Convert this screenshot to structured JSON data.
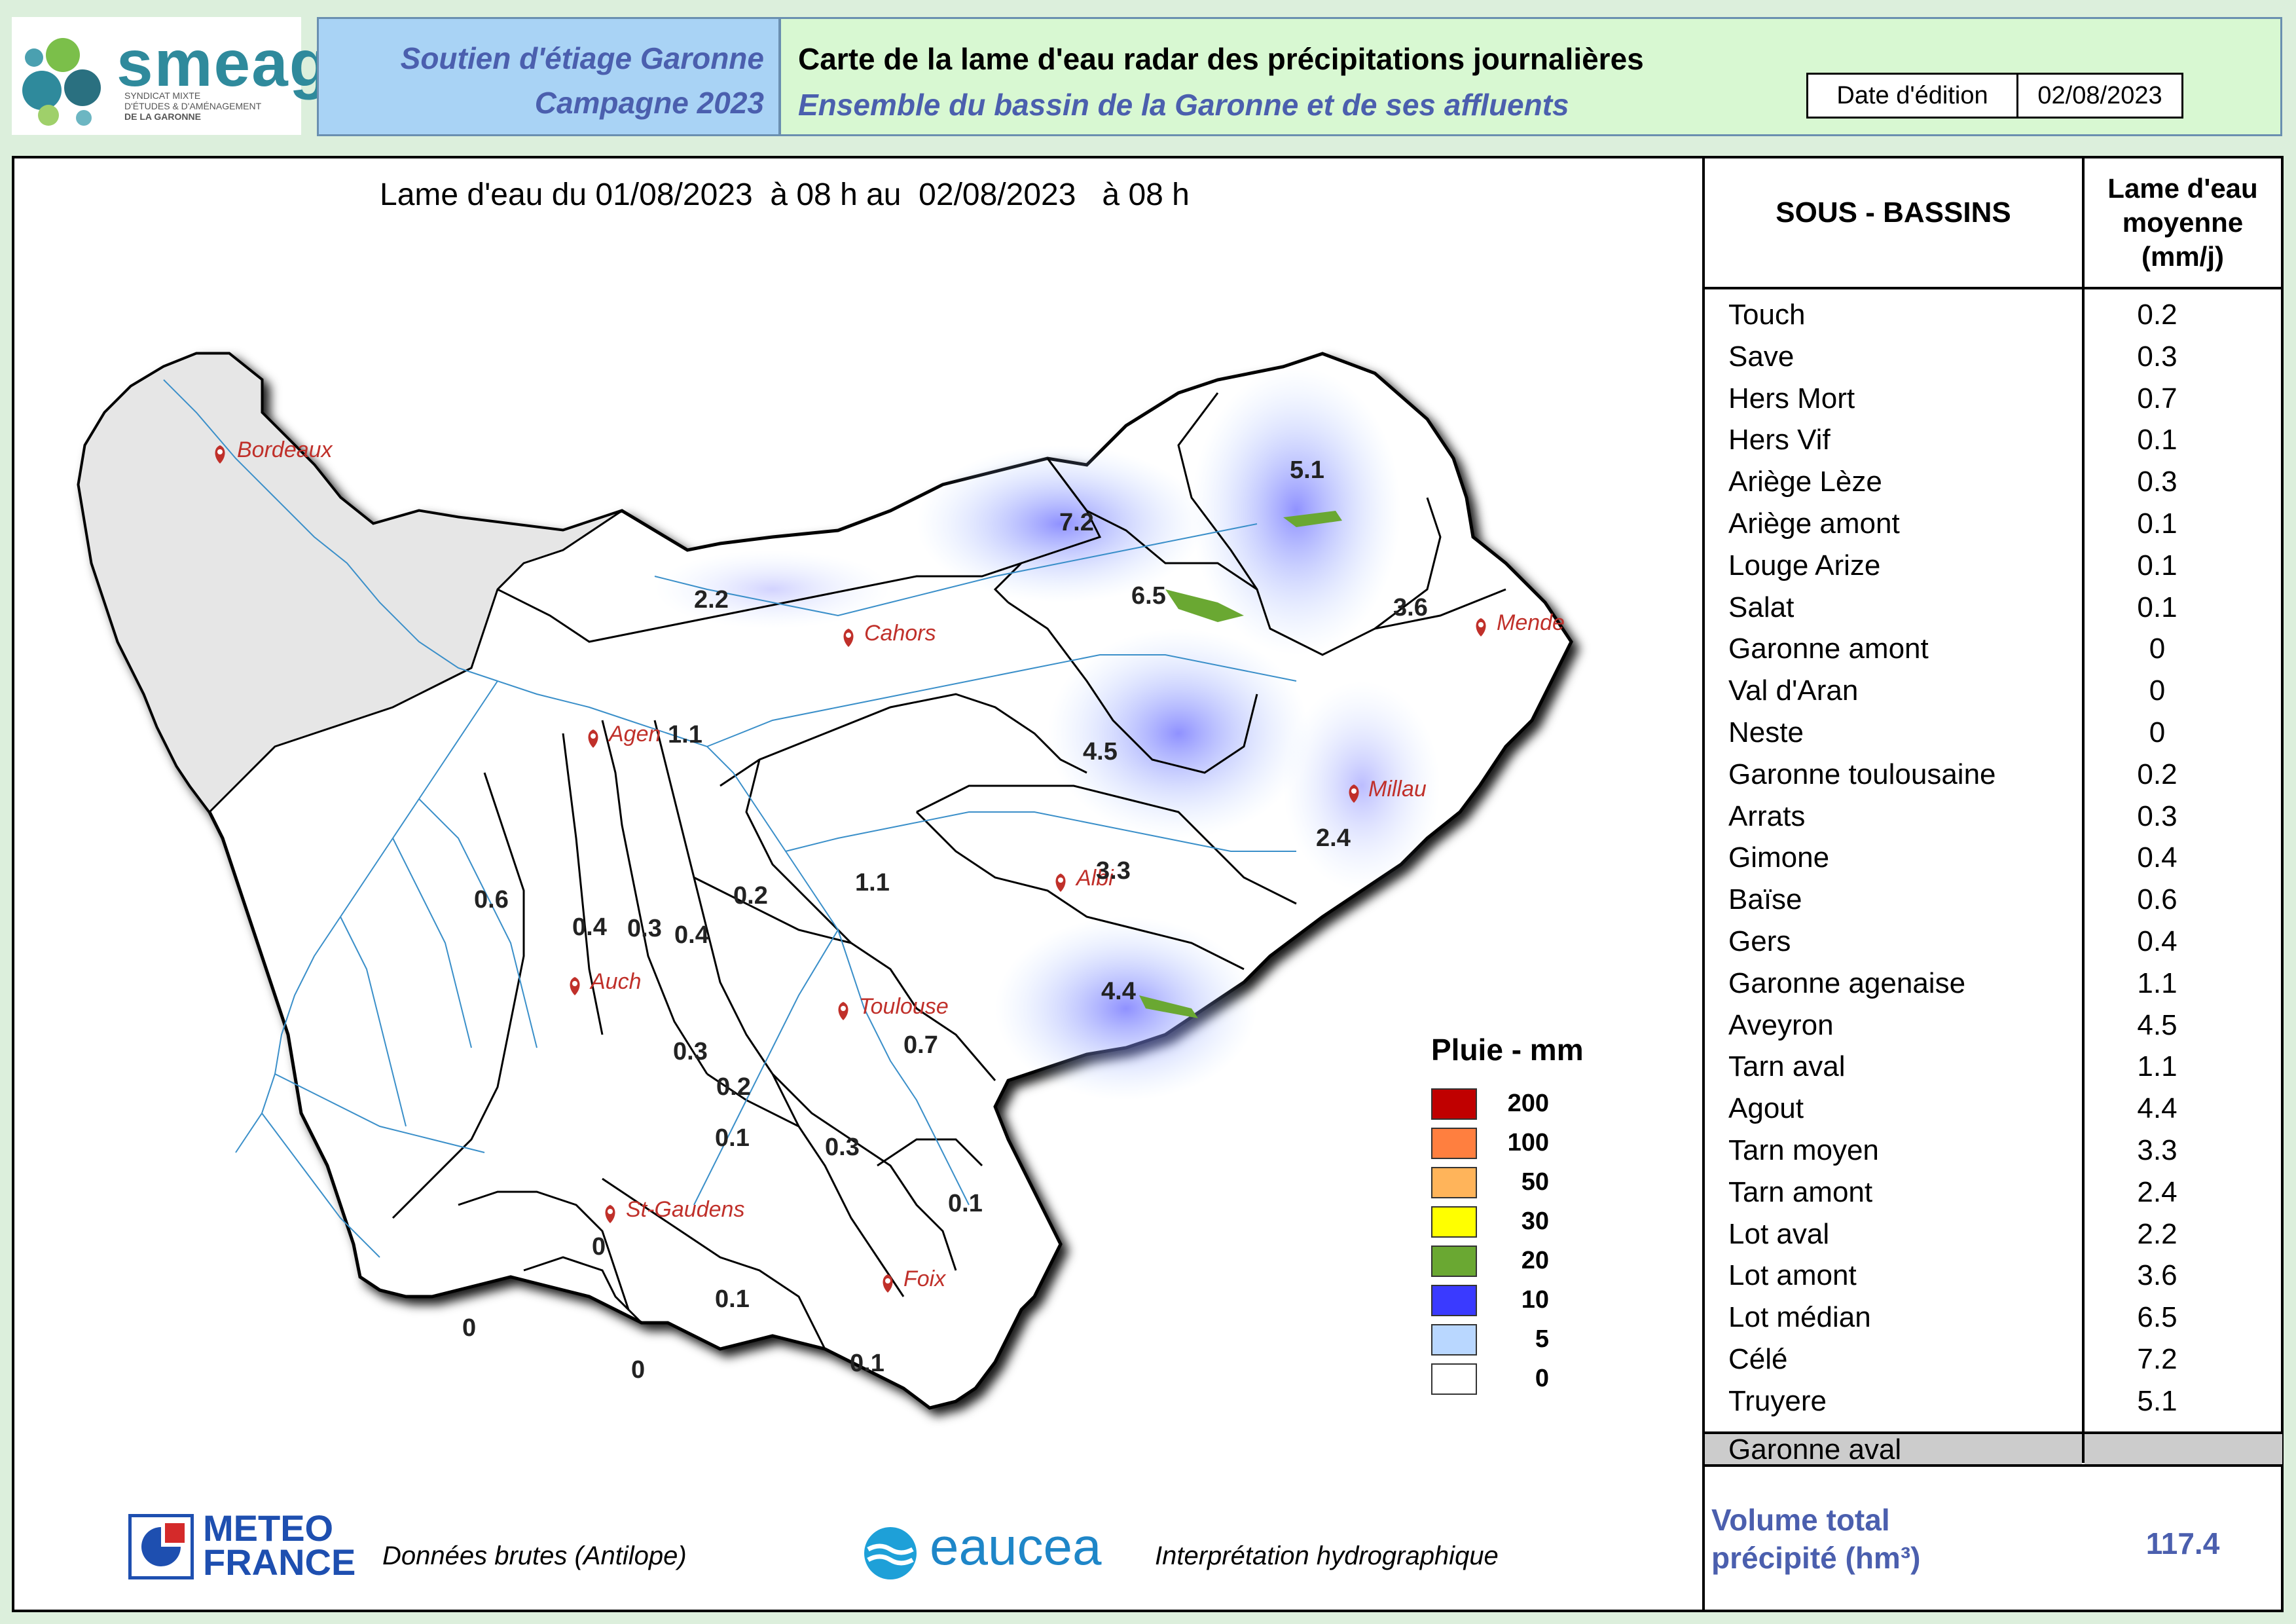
{
  "header": {
    "logo_text": "smeag",
    "logo_sub1": "SYNDICAT MIXTE",
    "logo_sub2": "D'ÉTUDES & D'AMÉNAGEMENT",
    "logo_sub3": "DE LA GARONNE",
    "left_line1": "Soutien d'étiage Garonne",
    "left_line2": "Campagne 2023",
    "title": "Carte de la lame d'eau radar des précipitations journalières",
    "subtitle": "Ensemble du bassin de la Garonne et de ses affluents",
    "date_label": "Date d'édition",
    "date_value": "02/08/2023"
  },
  "map": {
    "period": "Lame d'eau du 01/08/2023  à 08 h au  02/08/2023   à 08 h",
    "cities": [
      "Bordeaux",
      "Cahors",
      "Mende",
      "Agen",
      "Millau",
      "Albi",
      "Auch",
      "Toulouse",
      "St-Gaudens",
      "Foix"
    ],
    "subbasin_values": [
      "2.2",
      "7.2",
      "6.5",
      "5.1",
      "3.6",
      "1.1",
      "4.5",
      "2.4",
      "3.3",
      "1.1",
      "0.6",
      "0.4",
      "0.3",
      "0.4",
      "0.2",
      "4.4",
      "0.7",
      "0.3",
      "0.2",
      "0.1",
      "0.3",
      "0.1",
      "0",
      "0.1",
      "0",
      "0",
      "0.1"
    ],
    "legend": {
      "title": "Pluie - mm",
      "items": [
        {
          "value": "200",
          "color": "#c00000"
        },
        {
          "value": "100",
          "color": "#ff7f3f"
        },
        {
          "value": "50",
          "color": "#ffb45a"
        },
        {
          "value": "30",
          "color": "#ffff00"
        },
        {
          "value": "20",
          "color": "#6aa832"
        },
        {
          "value": "10",
          "color": "#3a3aff"
        },
        {
          "value": "5",
          "color": "#b9d7ff"
        },
        {
          "value": "0",
          "color": "#ffffff"
        }
      ]
    }
  },
  "table": {
    "col1_header": "SOUS - BASSINS",
    "col2_header_l1": "Lame d'eau",
    "col2_header_l2": "moyenne",
    "col2_header_l3": "(mm/j)",
    "rows": [
      {
        "name": "Touch",
        "value": "0.2"
      },
      {
        "name": "Save",
        "value": "0.3"
      },
      {
        "name": "Hers Mort",
        "value": "0.7"
      },
      {
        "name": "Hers Vif",
        "value": "0.1"
      },
      {
        "name": "Ariège Lèze",
        "value": "0.3"
      },
      {
        "name": "Ariège amont",
        "value": "0.1"
      },
      {
        "name": "Louge Arize",
        "value": "0.1"
      },
      {
        "name": "Salat",
        "value": "0.1"
      },
      {
        "name": "Garonne amont",
        "value": "0"
      },
      {
        "name": "Val d'Aran",
        "value": "0"
      },
      {
        "name": "Neste",
        "value": "0"
      },
      {
        "name": "Garonne toulousaine",
        "value": "0.2"
      },
      {
        "name": "Arrats",
        "value": "0.3"
      },
      {
        "name": "Gimone",
        "value": "0.4"
      },
      {
        "name": "Baïse",
        "value": "0.6"
      },
      {
        "name": "Gers",
        "value": "0.4"
      },
      {
        "name": "Garonne agenaise",
        "value": "1.1"
      },
      {
        "name": "Aveyron",
        "value": "4.5"
      },
      {
        "name": "Tarn aval",
        "value": "1.1"
      },
      {
        "name": "Agout",
        "value": "4.4"
      },
      {
        "name": "Tarn moyen",
        "value": "3.3"
      },
      {
        "name": "Tarn amont",
        "value": "2.4"
      },
      {
        "name": "Lot aval",
        "value": "2.2"
      },
      {
        "name": "Lot amont",
        "value": "3.6"
      },
      {
        "name": "Lot médian",
        "value": "6.5"
      },
      {
        "name": "Célé",
        "value": "7.2"
      },
      {
        "name": "Truyere",
        "value": "5.1"
      }
    ],
    "garonne_aval": "Garonne aval",
    "volume_label_l1": "Volume total",
    "volume_label_l2": "précipité (hm³)",
    "volume_value": "117.4"
  },
  "footer": {
    "meteo_l1": "METEO",
    "meteo_l2": "FRANCE",
    "meteo_caption": "Données brutes (Antilope)",
    "eaucea": "eaucea",
    "eaucea_caption": "Interprétation hydrographique"
  }
}
